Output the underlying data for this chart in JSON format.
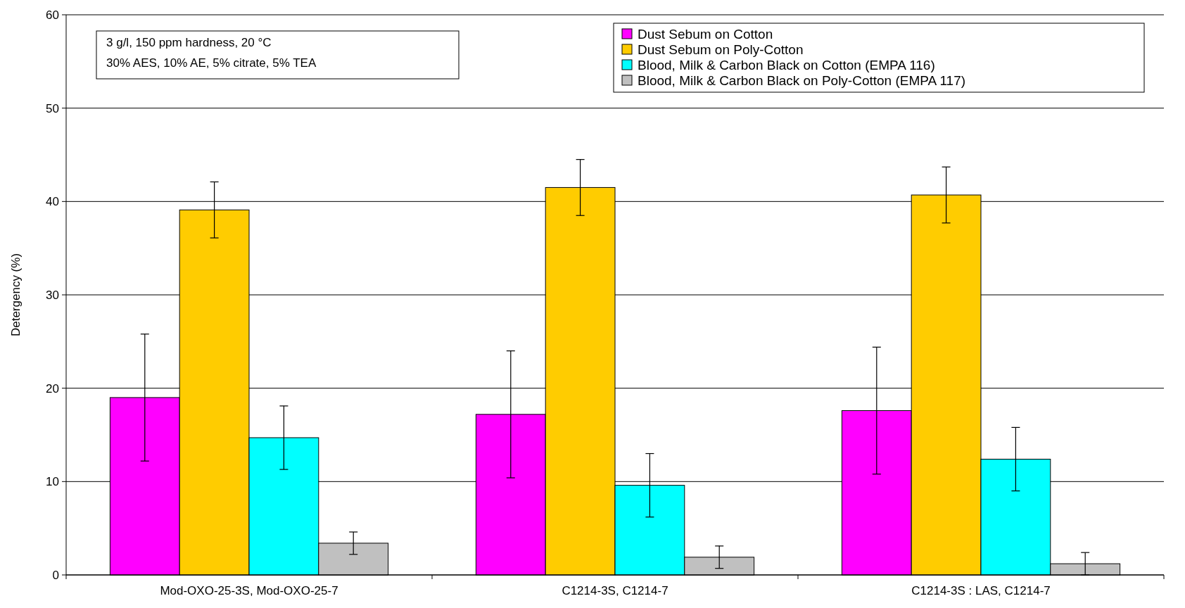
{
  "chart_data": {
    "type": "bar",
    "ylabel": "Detergency (%)",
    "categories": [
      "Mod-OXO-25-3S,  Mod-OXO-25-7",
      "C1214-3S, C1214-7",
      "C1214-3S : LAS, C1214-7"
    ],
    "series": [
      {
        "name": "Dust Sebum on Cotton",
        "color": "#ff00ff",
        "values": [
          19.0,
          17.2,
          17.6
        ],
        "errors": [
          6.8,
          6.8,
          6.8
        ]
      },
      {
        "name": "Dust Sebum on Poly-Cotton",
        "color": "#ffcc00",
        "values": [
          39.1,
          41.5,
          40.7
        ],
        "errors": [
          3.0,
          3.0,
          3.0
        ]
      },
      {
        "name": "Blood, Milk & Carbon Black on Cotton (EMPA 116)",
        "color": "#00ffff",
        "values": [
          14.7,
          9.6,
          12.4
        ],
        "errors": [
          3.4,
          3.4,
          3.4
        ]
      },
      {
        "name": "Blood, Milk & Carbon Black on Poly-Cotton (EMPA 117)",
        "color": "#c0c0c0",
        "values": [
          3.4,
          1.9,
          1.2
        ],
        "errors": [
          1.2,
          1.2,
          1.2
        ]
      }
    ],
    "ylim": [
      0,
      60
    ],
    "yticks": [
      0,
      10,
      20,
      30,
      40,
      50,
      60
    ],
    "grid": "y",
    "legend": "top right",
    "annotations": [
      "3 g/l, 150 ppm hardness, 20 °C",
      "30% AES, 10% AE, 5% citrate, 5% TEA"
    ]
  }
}
